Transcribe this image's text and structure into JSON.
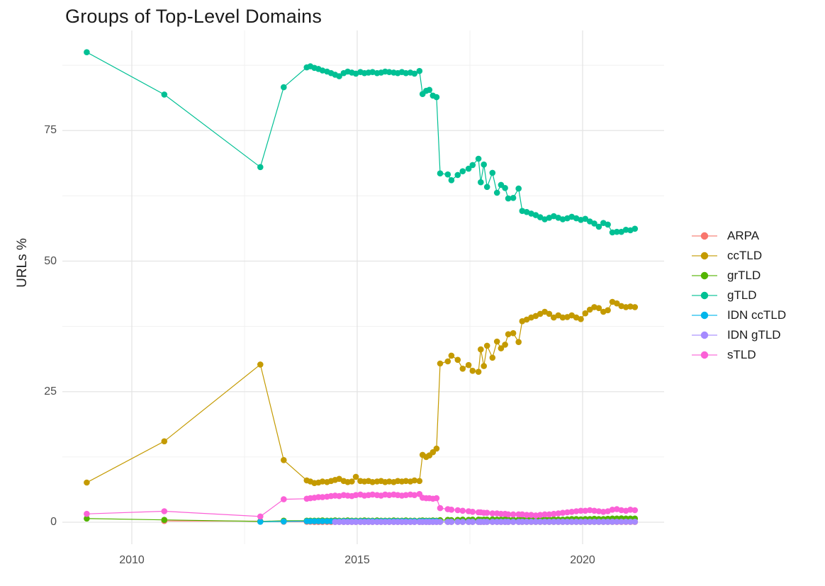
{
  "chart_data": {
    "type": "line",
    "title": "Groups of Top-Level Domains",
    "xlabel": "",
    "ylabel": "URLs %",
    "x_ticks": [
      2010,
      2015,
      2020
    ],
    "x_minor_ticks": [
      2012.5,
      2017.5
    ],
    "y_ticks": [
      0,
      25,
      50,
      75
    ],
    "y_minor_ticks": [
      12.5,
      37.5,
      62.5,
      87.5
    ],
    "xlim": [
      2008.5,
      2021.9
    ],
    "ylim": [
      -4,
      94
    ],
    "grid": true,
    "legend_position": "right",
    "marker": "point",
    "x": [
      2009.0,
      2010.72,
      2012.85,
      2013.37,
      2013.88,
      2013.96,
      2014.05,
      2014.14,
      2014.23,
      2014.33,
      2014.42,
      2014.51,
      2014.6,
      2014.7,
      2014.79,
      2014.88,
      2014.97,
      2015.07,
      2015.16,
      2015.25,
      2015.34,
      2015.44,
      2015.53,
      2015.62,
      2015.71,
      2015.81,
      2015.9,
      2015.99,
      2016.08,
      2016.18,
      2016.27,
      2016.38,
      2016.45,
      2016.53,
      2016.6,
      2016.68,
      2016.76,
      2016.84,
      2017.01,
      2017.09,
      2017.23,
      2017.34,
      2017.47,
      2017.56,
      2017.69,
      2017.74,
      2017.81,
      2017.88,
      2018.0,
      2018.1,
      2018.19,
      2018.28,
      2018.35,
      2018.46,
      2018.58,
      2018.66,
      2018.76,
      2018.86,
      2018.96,
      2019.06,
      2019.16,
      2019.26,
      2019.36,
      2019.46,
      2019.56,
      2019.66,
      2019.76,
      2019.86,
      2019.96,
      2020.06,
      2020.16,
      2020.26,
      2020.36,
      2020.46,
      2020.56,
      2020.66,
      2020.76,
      2020.86,
      2020.96,
      2021.06,
      2021.16
    ],
    "series": [
      {
        "name": "ARPA",
        "color": "#F8766D",
        "start": 1,
        "y": [
          0.25,
          0.2,
          0.1,
          0.1,
          0.1,
          0.05,
          0.05,
          0.05,
          0.05,
          0.05,
          0.05,
          0.05,
          0.05,
          0.05,
          0.05,
          0.05,
          0.05,
          0.05,
          0.05,
          0.05,
          0.05,
          0.05,
          0.05,
          0.05,
          0.05,
          0.05,
          0.05,
          0.05,
          0.05,
          0.05,
          0.05,
          0.05,
          0.05,
          0.05,
          0.05,
          0.05,
          0.05,
          0.05,
          0.05,
          0.05,
          0.05,
          0.05,
          0.05,
          0.05,
          0.05,
          0.05,
          0.05,
          0.05,
          0.05,
          0.05,
          0.05,
          0.05,
          0.05,
          0.05,
          0.05,
          0.05,
          0.05,
          0.05,
          0.05,
          0.05,
          0.05,
          0.05,
          0.05,
          0.05,
          0.05,
          0.05,
          0.05,
          0.05,
          0.05,
          0.05,
          0.05,
          0.05,
          0.05,
          0.05,
          0.05,
          0.05,
          0.05,
          0.05,
          0.05,
          0.05
        ]
      },
      {
        "name": "ccTLD",
        "color": "#C49A00",
        "start": 0,
        "y": [
          7.6,
          15.5,
          30.2,
          11.9,
          8.0,
          7.8,
          7.5,
          7.6,
          7.8,
          7.7,
          7.9,
          8.1,
          8.3,
          7.9,
          7.7,
          7.8,
          8.7,
          7.9,
          7.8,
          7.9,
          7.7,
          7.8,
          7.9,
          7.7,
          7.8,
          7.7,
          7.9,
          7.8,
          7.9,
          7.8,
          8.0,
          7.9,
          12.9,
          12.5,
          12.8,
          13.4,
          14.1,
          30.4,
          30.8,
          31.9,
          31.1,
          29.4,
          30.1,
          29.0,
          28.8,
          33.1,
          29.9,
          33.8,
          31.5,
          34.6,
          33.3,
          34.0,
          36.0,
          36.2,
          34.5,
          38.5,
          38.8,
          39.2,
          39.5,
          39.9,
          40.3,
          39.9,
          39.2,
          39.6,
          39.2,
          39.3,
          39.6,
          39.2,
          38.9,
          40.0,
          40.7,
          41.2,
          41.0,
          40.3,
          40.6,
          42.2,
          41.9,
          41.4,
          41.2,
          41.3,
          41.2
        ]
      },
      {
        "name": "grTLD",
        "color": "#53B400",
        "start": 0,
        "y": [
          0.7,
          0.45,
          0.15,
          0.3,
          0.3,
          0.3,
          0.3,
          0.3,
          0.35,
          0.3,
          0.3,
          0.35,
          0.3,
          0.3,
          0.35,
          0.3,
          0.3,
          0.3,
          0.35,
          0.3,
          0.3,
          0.35,
          0.3,
          0.3,
          0.3,
          0.35,
          0.3,
          0.3,
          0.35,
          0.3,
          0.3,
          0.3,
          0.35,
          0.3,
          0.3,
          0.35,
          0.3,
          0.4,
          0.45,
          0.4,
          0.45,
          0.5,
          0.45,
          0.5,
          0.5,
          0.45,
          0.5,
          0.5,
          0.55,
          0.5,
          0.5,
          0.55,
          0.5,
          0.5,
          0.5,
          0.5,
          0.5,
          0.55,
          0.5,
          0.5,
          0.55,
          0.5,
          0.55,
          0.5,
          0.5,
          0.55,
          0.6,
          0.6,
          0.55,
          0.6,
          0.6,
          0.65,
          0.6,
          0.6,
          0.65,
          0.7,
          0.7,
          0.75,
          0.7,
          0.7,
          0.7
        ]
      },
      {
        "name": "gTLD",
        "color": "#00C094",
        "start": 0,
        "y": [
          90.0,
          81.9,
          68.0,
          83.3,
          87.1,
          87.3,
          87.0,
          86.8,
          86.5,
          86.3,
          86.0,
          85.7,
          85.4,
          86.0,
          86.3,
          86.1,
          85.9,
          86.2,
          86.0,
          86.1,
          86.2,
          86.0,
          86.1,
          86.3,
          86.2,
          86.1,
          86.0,
          86.2,
          86.0,
          86.1,
          85.9,
          86.4,
          82.0,
          82.6,
          82.8,
          81.7,
          81.4,
          66.8,
          66.6,
          65.5,
          66.5,
          67.2,
          67.7,
          68.4,
          69.6,
          65.1,
          68.5,
          64.2,
          66.9,
          63.1,
          64.6,
          64.0,
          62.0,
          62.1,
          63.9,
          59.6,
          59.4,
          59.1,
          58.8,
          58.4,
          58.0,
          58.3,
          58.6,
          58.3,
          58.0,
          58.2,
          58.5,
          58.2,
          57.9,
          58.1,
          57.6,
          57.2,
          56.6,
          57.3,
          57.0,
          55.5,
          55.6,
          55.6,
          56.0,
          55.9,
          56.2
        ]
      },
      {
        "name": "IDN ccTLD",
        "color": "#00B6EB",
        "start": 2,
        "y": [
          0.1,
          0.15,
          0.2,
          0.2,
          0.2,
          0.2,
          0.2,
          0.2,
          0.2,
          0.2,
          0.2,
          0.2,
          0.2,
          0.2,
          0.2,
          0.2,
          0.2,
          0.2,
          0.2,
          0.2,
          0.2,
          0.2,
          0.2,
          0.2,
          0.2,
          0.2,
          0.2,
          0.2,
          0.2,
          0.2,
          0.2,
          0.2,
          0.2,
          0.2,
          0.2,
          0.1,
          0.1,
          0.1,
          0.1,
          0.1,
          0.1,
          0.1,
          0.1,
          0.1,
          0.1,
          0.1,
          0.1,
          0.1,
          0.1,
          0.1,
          0.1,
          0.1,
          0.1,
          0.1,
          0.1,
          0.1,
          0.1,
          0.1,
          0.1,
          0.1,
          0.1,
          0.1,
          0.1,
          0.1,
          0.1,
          0.1,
          0.1,
          0.1,
          0.1,
          0.1,
          0.1,
          0.1,
          0.1,
          0.1
        ]
      },
      {
        "name": "IDN gTLD",
        "color": "#A58AFF",
        "start": 11,
        "y": [
          0.05,
          0.05,
          0.05,
          0.05,
          0.05,
          0.05,
          0.05,
          0.05,
          0.05,
          0.05,
          0.05,
          0.05,
          0.05,
          0.05,
          0.05,
          0.05,
          0.05,
          0.05,
          0.05,
          0.05,
          0.05,
          0.05,
          0.05,
          0.05,
          0.05,
          0.05,
          0.08,
          0.08,
          0.08,
          0.08,
          0.08,
          0.08,
          0.08,
          0.08,
          0.08,
          0.08,
          0.08,
          0.08,
          0.08,
          0.08,
          0.08,
          0.08,
          0.08,
          0.08,
          0.1,
          0.1,
          0.1,
          0.1,
          0.1,
          0.1,
          0.1,
          0.1,
          0.1,
          0.1,
          0.1,
          0.1,
          0.1,
          0.1,
          0.1,
          0.1,
          0.1,
          0.1,
          0.1,
          0.1,
          0.1,
          0.1,
          0.1,
          0.1,
          0.1,
          0.1
        ]
      },
      {
        "name": "sTLD",
        "color": "#FB61D7",
        "start": 0,
        "y": [
          1.6,
          2.1,
          1.1,
          4.4,
          4.5,
          4.6,
          4.7,
          4.8,
          4.8,
          4.9,
          5.0,
          5.1,
          5.0,
          5.2,
          5.1,
          5.0,
          5.2,
          5.3,
          5.1,
          5.2,
          5.3,
          5.2,
          5.1,
          5.3,
          5.2,
          5.3,
          5.2,
          5.1,
          5.2,
          5.3,
          5.2,
          5.4,
          4.7,
          4.6,
          4.6,
          4.5,
          4.6,
          2.7,
          2.5,
          2.4,
          2.3,
          2.2,
          2.1,
          2.0,
          1.9,
          1.9,
          1.8,
          1.8,
          1.7,
          1.7,
          1.6,
          1.6,
          1.5,
          1.5,
          1.5,
          1.5,
          1.4,
          1.4,
          1.3,
          1.4,
          1.5,
          1.5,
          1.6,
          1.7,
          1.8,
          1.9,
          2.0,
          2.1,
          2.2,
          2.2,
          2.3,
          2.2,
          2.1,
          2.0,
          2.1,
          2.4,
          2.5,
          2.3,
          2.2,
          2.4,
          2.3
        ]
      }
    ],
    "colors": {
      "grid_major": "#e4e4e4",
      "grid_minor": "#f0f0f0",
      "title_text": "#1a1a1a",
      "tick_text": "#4d4d4d",
      "background": "#ffffff"
    }
  }
}
